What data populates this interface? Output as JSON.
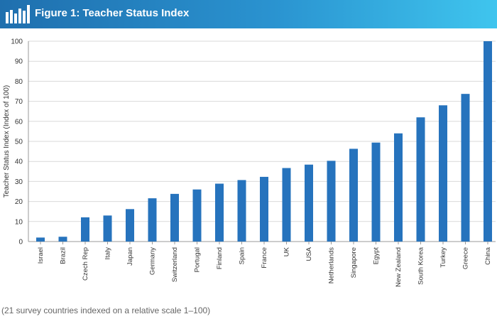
{
  "header": {
    "title": "Figure 1: Teacher Status Index",
    "icon": "bar-chart-icon",
    "gradient": [
      "#1f6fae",
      "#3fc5ee"
    ]
  },
  "chart_data": {
    "type": "bar",
    "title": "Figure 1: Teacher Status Index",
    "ylabel": "Teacher Status Index (Index of 100)",
    "xlabel": "",
    "ylim": [
      0,
      100
    ],
    "yticks": [
      0,
      10,
      20,
      30,
      40,
      50,
      60,
      70,
      80,
      90,
      100
    ],
    "grid": true,
    "bar_color": "#2673bd",
    "categories": [
      "Israel",
      "Brazil",
      "Czech Rep",
      "Italy",
      "Japan",
      "Germany",
      "Switzerland",
      "Portugal",
      "Finland",
      "Spain",
      "France",
      "UK",
      "USA",
      "Netherlands",
      "Singapore",
      "Egypt",
      "New Zealand",
      "South Korea",
      "Turkey",
      "Greece",
      "China"
    ],
    "values": [
      2,
      2.4,
      12.1,
      13,
      16.2,
      21.6,
      23.8,
      26,
      28.9,
      30.7,
      32.3,
      36.7,
      38.4,
      40.3,
      46.3,
      49.4,
      54,
      62,
      68,
      73.7,
      100
    ]
  },
  "footnote": "(21 survey countries indexed on a relative scale 1–100)"
}
